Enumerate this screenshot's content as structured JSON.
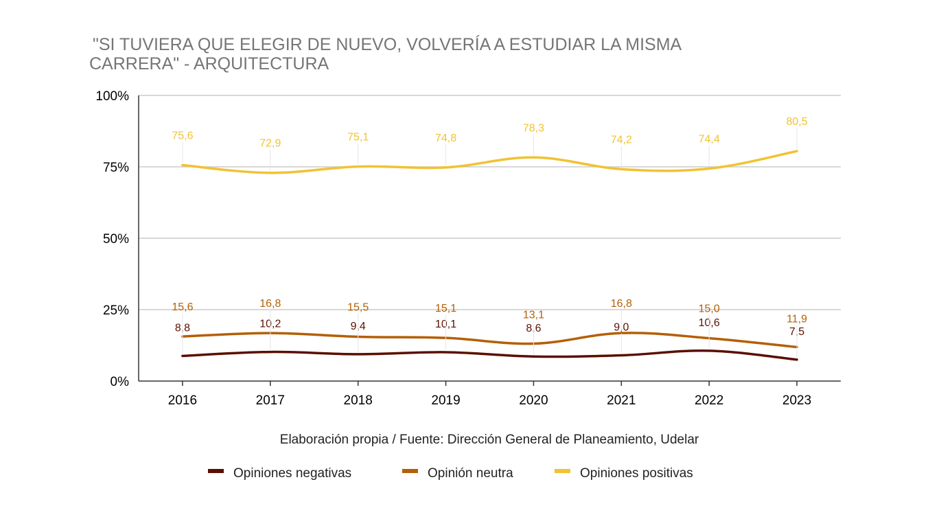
{
  "chart_data": {
    "type": "line",
    "title_line1": "\"SI TUVIERA QUE ELEGIR DE NUEVO, VOLVERÍA A ESTUDIAR LA MISMA",
    "title_line2": "CARRERA\" - ARQUITECTURA",
    "xlabel": "Elaboración propia / Fuente: Dirección General de Planeamiento, Udelar",
    "ylabel": "",
    "ylim": [
      0,
      100
    ],
    "yticks": [
      0,
      25,
      50,
      75,
      100
    ],
    "ytick_labels": [
      "0%",
      "25%",
      "50%",
      "75%",
      "100%"
    ],
    "categories": [
      "2016",
      "2017",
      "2018",
      "2019",
      "2020",
      "2021",
      "2022",
      "2023"
    ],
    "grid": true,
    "legend_position": "bottom",
    "series": [
      {
        "name": "Opiniones negativas",
        "color": "#5b0f00",
        "values": [
          8.8,
          10.2,
          9.4,
          10.1,
          8.6,
          9.0,
          10.6,
          7.5
        ],
        "labels": [
          "8,8",
          "10,2",
          "9,4",
          "10,1",
          "8,6",
          "9,0",
          "10,6",
          "7,5"
        ]
      },
      {
        "name": "Opinión neutra",
        "color": "#b45f06",
        "values": [
          15.6,
          16.8,
          15.5,
          15.1,
          13.1,
          16.8,
          15.0,
          11.9
        ],
        "labels": [
          "15,6",
          "16,8",
          "15,5",
          "15,1",
          "13,1",
          "16,8",
          "15,0",
          "11,9"
        ]
      },
      {
        "name": "Opiniones positivas",
        "color": "#f1c232",
        "values": [
          75.6,
          72.9,
          75.1,
          74.8,
          78.3,
          74.2,
          74.4,
          80.5
        ],
        "labels": [
          "75,6",
          "72,9",
          "75,1",
          "74,8",
          "78,3",
          "74,2",
          "74,4",
          "80,5"
        ]
      }
    ]
  }
}
